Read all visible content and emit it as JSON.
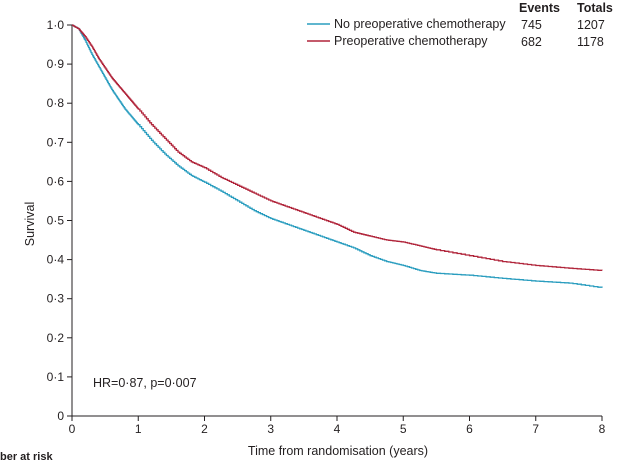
{
  "chart_data": {
    "type": "line",
    "step": true,
    "xlabel": "Time from randomisation (years)",
    "ylabel": "Survival",
    "xlim": [
      0,
      8
    ],
    "ylim": [
      0,
      1.0
    ],
    "x_ticks": [
      0,
      1,
      2,
      3,
      4,
      5,
      6,
      7,
      8
    ],
    "y_ticks": [
      0,
      0.1,
      0.2,
      0.3,
      0.4,
      0.5,
      0.6,
      0.7,
      0.8,
      0.9,
      1.0
    ],
    "x_tick_labels": [
      "0",
      "1",
      "2",
      "3",
      "4",
      "5",
      "6",
      "7",
      "8"
    ],
    "y_tick_labels": [
      "0",
      "0·1",
      "0·2",
      "0·3",
      "0·4",
      "0·5",
      "0·6",
      "0·7",
      "0·8",
      "0·9",
      "1·0"
    ],
    "grid": false,
    "legend": {
      "position": "top-right",
      "headers": [
        "Events",
        "Totals"
      ]
    },
    "series": [
      {
        "name": "No preoperative chemotherapy",
        "color": "#2a9dbf",
        "events": "745",
        "totals": "1207",
        "x": [
          0,
          0.1,
          0.2,
          0.3,
          0.4,
          0.5,
          0.6,
          0.7,
          0.8,
          0.9,
          1.0,
          1.2,
          1.4,
          1.6,
          1.8,
          2.0,
          2.25,
          2.5,
          2.75,
          3.0,
          3.25,
          3.5,
          3.75,
          4.0,
          4.25,
          4.5,
          4.75,
          5.0,
          5.25,
          5.5,
          6.0,
          6.5,
          7.0,
          7.5,
          8.0
        ],
        "y": [
          1.0,
          0.99,
          0.96,
          0.925,
          0.895,
          0.865,
          0.835,
          0.81,
          0.785,
          0.765,
          0.745,
          0.705,
          0.67,
          0.64,
          0.615,
          0.598,
          0.575,
          0.55,
          0.525,
          0.505,
          0.49,
          0.475,
          0.46,
          0.445,
          0.43,
          0.41,
          0.395,
          0.385,
          0.372,
          0.365,
          0.36,
          0.352,
          0.345,
          0.34,
          0.328
        ]
      },
      {
        "name": "Preoperative chemotherapy",
        "color": "#b0243a",
        "events": "682",
        "totals": "1178",
        "x": [
          0,
          0.1,
          0.2,
          0.3,
          0.4,
          0.5,
          0.6,
          0.7,
          0.8,
          0.9,
          1.0,
          1.2,
          1.4,
          1.6,
          1.8,
          2.0,
          2.25,
          2.5,
          2.75,
          3.0,
          3.25,
          3.5,
          3.75,
          4.0,
          4.25,
          4.5,
          4.75,
          5.0,
          5.25,
          5.5,
          6.0,
          6.5,
          7.0,
          7.5,
          8.0
        ],
        "y": [
          1.0,
          0.99,
          0.97,
          0.945,
          0.915,
          0.89,
          0.865,
          0.845,
          0.825,
          0.805,
          0.785,
          0.745,
          0.71,
          0.675,
          0.65,
          0.635,
          0.61,
          0.59,
          0.57,
          0.55,
          0.535,
          0.52,
          0.505,
          0.49,
          0.47,
          0.46,
          0.45,
          0.445,
          0.435,
          0.425,
          0.41,
          0.395,
          0.385,
          0.378,
          0.372
        ]
      }
    ],
    "annotation": "HR=0·87, p=0·007",
    "footer": "ber at risk"
  }
}
